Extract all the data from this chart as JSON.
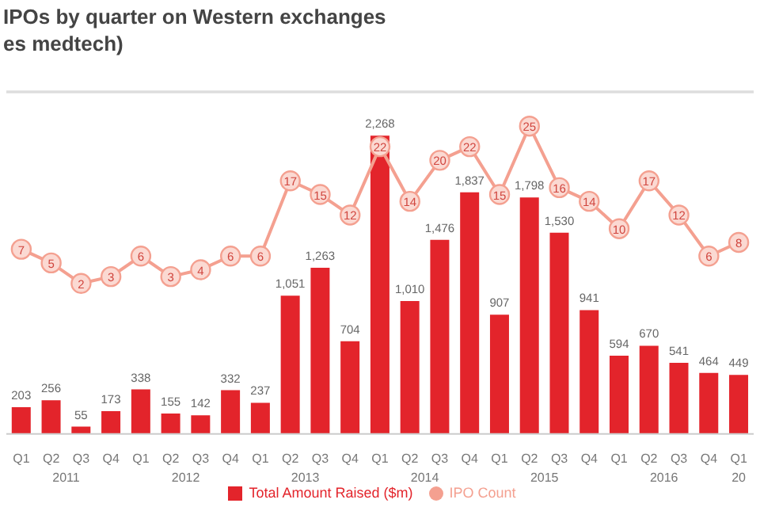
{
  "chart_data": {
    "type": "bar",
    "title": "IPOs by quarter on Western exchanges",
    "subtitle": "es medtech)",
    "categories": [
      "Q1",
      "Q2",
      "Q3",
      "Q4",
      "Q1",
      "Q2",
      "Q3",
      "Q4",
      "Q1",
      "Q2",
      "Q3",
      "Q4",
      "Q1",
      "Q2",
      "Q3",
      "Q4",
      "Q1",
      "Q2",
      "Q3",
      "Q4",
      "Q1",
      "Q2",
      "Q3",
      "Q4",
      "Q1"
    ],
    "annotations": [
      "2011",
      "2012",
      "2013",
      "2014",
      "2015",
      "2016",
      "20"
    ],
    "series": [
      {
        "name": "Total Amount Raised ($m)",
        "color": "#e3242b",
        "values": [
          203,
          256,
          55,
          173,
          338,
          155,
          142,
          332,
          237,
          1051,
          1263,
          704,
          2268,
          1010,
          1476,
          1837,
          907,
          1798,
          1530,
          941,
          594,
          670,
          541,
          464,
          449
        ],
        "value_labels": [
          "203",
          "256",
          "55",
          "173",
          "338",
          "155",
          "142",
          "332",
          "237",
          "1,051",
          "1,263",
          "704",
          "2,268",
          "1,010",
          "1,476",
          "1,837",
          "907",
          "1,798",
          "1,530",
          "941",
          "594",
          "670",
          "541",
          "464",
          "449"
        ]
      },
      {
        "name": "IPO Count",
        "type": "line",
        "axis": "y2",
        "color": "#f4a090",
        "marker": "circle",
        "values": [
          7,
          5,
          2,
          3,
          6,
          3,
          4,
          6,
          6,
          17,
          15,
          12,
          22,
          14,
          20,
          22,
          15,
          25,
          16,
          14,
          10,
          17,
          12,
          6,
          8
        ]
      }
    ],
    "ylim": [
      0,
      2600
    ],
    "y2lim": [
      -20,
      30
    ],
    "tick_labels": "x",
    "data_labels": true,
    "legend": "bottom"
  }
}
